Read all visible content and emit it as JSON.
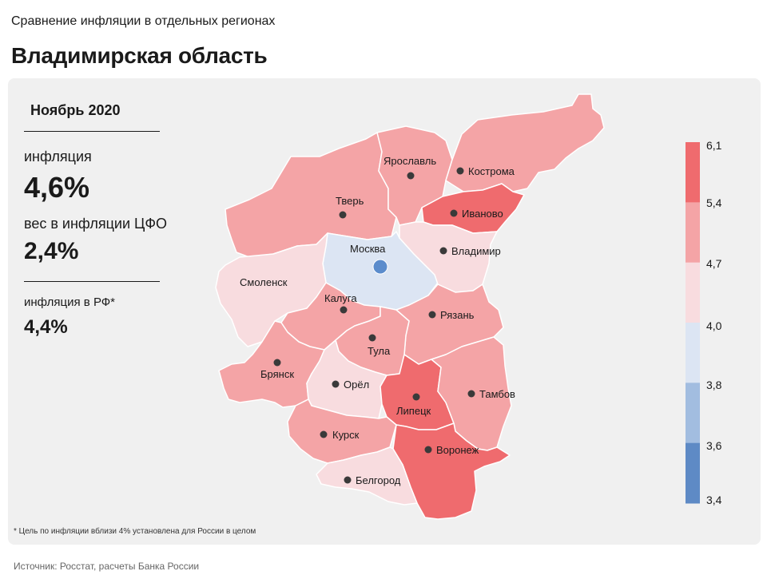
{
  "header": {
    "subtitle": "Сравнение инфляции в отдельных регионах",
    "title": "Владимирская область"
  },
  "stats": {
    "period": "Ноябрь 2020",
    "inflation_label": "инфляция",
    "inflation_value": "4,6%",
    "weight_label": "вес в инфляции ЦФО",
    "weight_value": "2,4%",
    "rf_label": "инфляция в РФ*",
    "rf_value": "4,4%"
  },
  "footnote": "* Цель по инфляции вблизи 4% установлена для России в целом",
  "source": "Источник: Росстат, расчеты Банка России",
  "legend": {
    "ticks": [
      "6,1",
      "5,4",
      "4,7",
      "4,0",
      "3,8",
      "3,6",
      "3,4"
    ],
    "colors": [
      "#ef6b6e",
      "#f4a4a6",
      "#f8dcdf",
      "#dce5f3",
      "#a2bde0",
      "#5e8ac5"
    ]
  },
  "regions": [
    {
      "name": "Тверь",
      "class": "medium"
    },
    {
      "name": "Ярославль",
      "class": "medium"
    },
    {
      "name": "Кострома",
      "class": "medium"
    },
    {
      "name": "Иваново",
      "class": "high"
    },
    {
      "name": "Москва",
      "class": "below",
      "capital": true
    },
    {
      "name": "Владимир",
      "class": "low"
    },
    {
      "name": "Смоленск",
      "class": "low"
    },
    {
      "name": "Калуга",
      "class": "medium"
    },
    {
      "name": "Рязань",
      "class": "medium"
    },
    {
      "name": "Тула",
      "class": "medium"
    },
    {
      "name": "Брянск",
      "class": "medium"
    },
    {
      "name": "Орёл",
      "class": "low"
    },
    {
      "name": "Липецк",
      "class": "high"
    },
    {
      "name": "Тамбов",
      "class": "medium"
    },
    {
      "name": "Курск",
      "class": "medium"
    },
    {
      "name": "Воронеж",
      "class": "high"
    },
    {
      "name": "Белгород",
      "class": "low"
    }
  ]
}
